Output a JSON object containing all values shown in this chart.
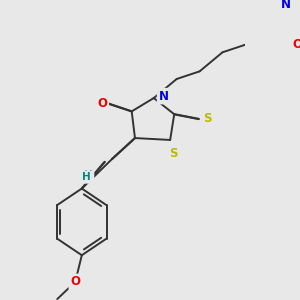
{
  "bg_color": "#e8e8e8",
  "bond_color": "#333333",
  "bond_width": 1.4,
  "dbo": 0.018,
  "atom_colors": {
    "N": "#0000ee",
    "O": "#ee0000",
    "S": "#bbbb00",
    "H": "#008888",
    "C": "#333333"
  },
  "fs": 8.5,
  "figsize": [
    3.0,
    3.0
  ],
  "dpi": 100
}
